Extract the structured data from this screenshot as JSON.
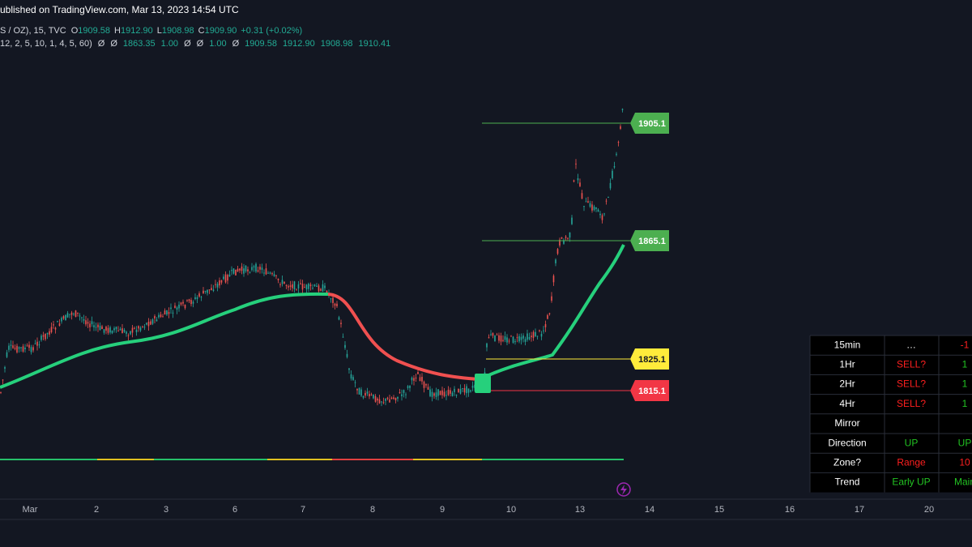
{
  "header": {
    "title": "ublished on TradingView.com, Mar 13, 2023 14:54 UTC"
  },
  "legend": {
    "symbol": "S / OZ), 15, TVC",
    "ohlc": [
      {
        "key": "O",
        "value": "1909.58"
      },
      {
        "key": "H",
        "value": "1912.90"
      },
      {
        "key": "L",
        "value": "1908.98"
      },
      {
        "key": "C",
        "value": "1909.90"
      }
    ],
    "change": "+0.31 (+0.02%)",
    "indicator_params": "12, 2, 5, 10, 1, 4, 5, 60)",
    "indicator_values": [
      "Ø",
      "Ø",
      "1863.35",
      "1.00",
      "Ø",
      "Ø",
      "1.00",
      "Ø",
      "1909.58",
      "1912.90",
      "1908.98",
      "1910.41"
    ]
  },
  "price_labels": [
    {
      "text": "1905.1",
      "color": "#4caf50",
      "text_color": "#ffffff"
    },
    {
      "text": "1865.1",
      "color": "#4caf50",
      "text_color": "#ffffff"
    },
    {
      "text": "1825.1",
      "color": "#ffeb3b",
      "text_color": "#131722"
    },
    {
      "text": "1815.1",
      "color": "#f23645",
      "text_color": "#ffffff"
    }
  ],
  "x_axis": {
    "labels": [
      "Mar",
      "2",
      "3",
      "6",
      "7",
      "8",
      "9",
      "10",
      "13",
      "14",
      "15",
      "16",
      "17",
      "20"
    ]
  },
  "table": {
    "rows": [
      [
        {
          "text": "15min",
          "color": "#ffffff"
        },
        {
          "text": "…",
          "color": "#ffffff"
        },
        {
          "text": "-1",
          "color": "#ff1f1f"
        }
      ],
      [
        {
          "text": "1Hr",
          "color": "#ffffff"
        },
        {
          "text": "SELL?",
          "color": "#ff1f1f"
        },
        {
          "text": "1",
          "color": "#22c322"
        }
      ],
      [
        {
          "text": "2Hr",
          "color": "#ffffff"
        },
        {
          "text": "SELL?",
          "color": "#ff1f1f"
        },
        {
          "text": "1",
          "color": "#22c322"
        }
      ],
      [
        {
          "text": "4Hr",
          "color": "#ffffff"
        },
        {
          "text": "SELL?",
          "color": "#ff1f1f"
        },
        {
          "text": "1",
          "color": "#22c322"
        }
      ],
      [
        {
          "text": "Mirror",
          "color": "#ffffff"
        }
      ],
      [
        {
          "text": "Direction",
          "color": "#ffffff"
        },
        {
          "text": "UP",
          "color": "#22c322"
        },
        {
          "text": "UP",
          "color": "#22c322"
        }
      ],
      [
        {
          "text": "Zone?",
          "color": "#ffffff"
        },
        {
          "text": "Range",
          "color": "#ff1f1f"
        },
        {
          "text": "10",
          "color": "#ff1f1f"
        }
      ],
      [
        {
          "text": "Trend",
          "color": "#ffffff"
        },
        {
          "text": "Early UP",
          "color": "#22c322"
        },
        {
          "text": "Main",
          "color": "#22c322"
        }
      ]
    ]
  }
}
